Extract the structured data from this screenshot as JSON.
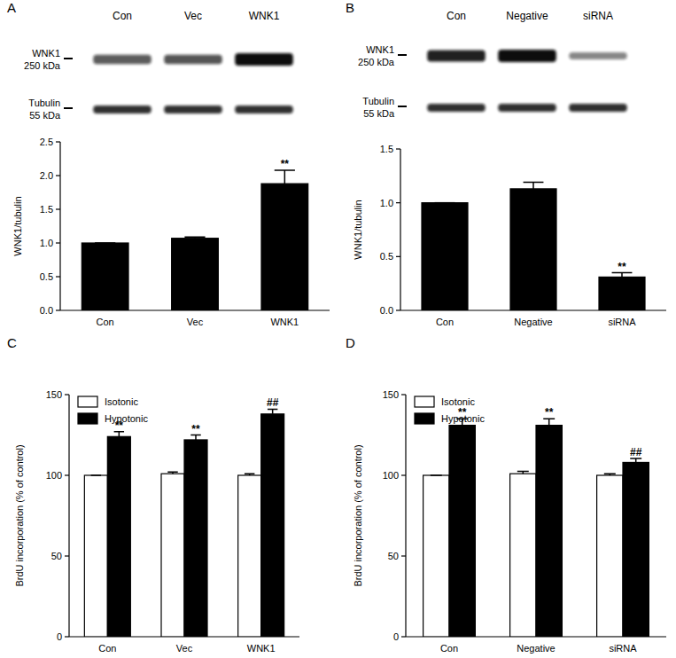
{
  "chart_data": [
    {
      "type": "bar",
      "panel": "A",
      "blot": {
        "lanes": [
          "Con",
          "Vec",
          "WNK1"
        ],
        "bands": [
          {
            "name": "WNK1",
            "size": "250 kDa"
          },
          {
            "name": "Tubulin",
            "size": "55 kDa"
          }
        ]
      },
      "y_label": "WNK1/tubulin",
      "categories": [
        "Con",
        "Vec",
        "WNK1"
      ],
      "values": [
        1.0,
        1.07,
        1.88
      ],
      "errors": [
        0,
        0.02,
        0.2
      ],
      "significance": [
        null,
        null,
        "**"
      ],
      "color": "#000000",
      "ylim": [
        0,
        2.5
      ],
      "yticks": [
        {
          "value": 0,
          "label": "0.0"
        },
        {
          "value": 0.5,
          "label": "0.5"
        },
        {
          "value": 1,
          "label": "1.0"
        },
        {
          "value": 1.5,
          "label": "1.5"
        },
        {
          "value": 2,
          "label": "2.0"
        },
        {
          "value": 2.5,
          "label": "2.5"
        }
      ]
    },
    {
      "type": "bar",
      "panel": "B",
      "blot": {
        "lanes": [
          "Con",
          "Negative",
          "siRNA"
        ],
        "bands": [
          {
            "name": "WNK1",
            "size": "250 kDa"
          },
          {
            "name": "Tubulin",
            "size": "55 kDa"
          }
        ]
      },
      "y_label": "WNK1/tubulin",
      "categories": [
        "Con",
        "Negative",
        "siRNA"
      ],
      "values": [
        1.0,
        1.13,
        0.31
      ],
      "errors": [
        0,
        0.06,
        0.04
      ],
      "significance": [
        null,
        null,
        "**"
      ],
      "color": "#000000",
      "ylim": [
        0,
        1.5
      ],
      "yticks": [
        {
          "value": 0,
          "label": "0.0"
        },
        {
          "value": 0.5,
          "label": "0.5"
        },
        {
          "value": 1,
          "label": "1.0"
        },
        {
          "value": 1.5,
          "label": "1.5"
        }
      ]
    },
    {
      "type": "bar",
      "panel": "C",
      "y_label": "BrdU incorporation (% of control)",
      "categories": [
        "Con",
        "Vec",
        "WNK1"
      ],
      "series": [
        {
          "name": "Isotonic",
          "color": "#ffffff",
          "values": [
            100,
            101,
            100
          ],
          "errors": [
            0,
            1,
            1
          ],
          "significance": [
            null,
            null,
            null
          ]
        },
        {
          "name": "Hypotonic",
          "color": "#000000",
          "values": [
            124,
            122,
            138
          ],
          "errors": [
            3,
            3,
            3
          ],
          "significance": [
            "**",
            "**",
            "##"
          ]
        }
      ],
      "legend": "upper left",
      "ylim": [
        0,
        150
      ],
      "yticks": [
        0,
        50,
        100,
        150
      ]
    },
    {
      "type": "bar",
      "panel": "D",
      "y_label": "BrdU incorporation (% of control)",
      "categories": [
        "Con",
        "Negative",
        "siRNA"
      ],
      "series": [
        {
          "name": "Isotonic",
          "color": "#ffffff",
          "values": [
            100,
            101,
            100
          ],
          "errors": [
            0,
            1.5,
            1
          ],
          "significance": [
            null,
            null,
            null
          ]
        },
        {
          "name": "Hypotonic",
          "color": "#000000",
          "values": [
            131,
            131,
            108
          ],
          "errors": [
            4,
            4,
            2.5
          ],
          "significance": [
            "**",
            "**",
            "##"
          ]
        }
      ],
      "legend": "upper left",
      "ylim": [
        0,
        150
      ],
      "yticks": [
        0,
        50,
        100,
        150
      ]
    }
  ]
}
